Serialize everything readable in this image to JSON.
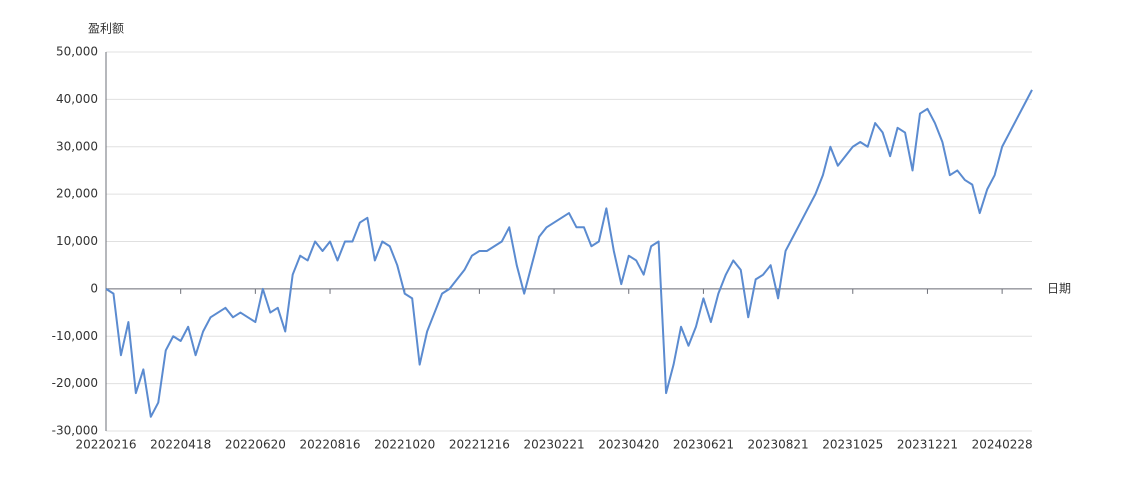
{
  "chart_data": {
    "type": "line",
    "y_axis_name": "盈利额",
    "x_axis_name": "日期",
    "categories": [
      "20220216",
      null,
      null,
      null,
      null,
      null,
      null,
      null,
      null,
      null,
      "20220418",
      null,
      null,
      null,
      null,
      null,
      null,
      null,
      null,
      null,
      "20220620",
      null,
      null,
      null,
      null,
      null,
      null,
      null,
      null,
      null,
      "20220816",
      null,
      null,
      null,
      null,
      null,
      null,
      null,
      null,
      null,
      "20221020",
      null,
      null,
      null,
      null,
      null,
      null,
      null,
      null,
      null,
      "20221216",
      null,
      null,
      null,
      null,
      null,
      null,
      null,
      null,
      null,
      "20230221",
      null,
      null,
      null,
      null,
      null,
      null,
      null,
      null,
      null,
      "20230420",
      null,
      null,
      null,
      null,
      null,
      null,
      null,
      null,
      null,
      "20230621",
      null,
      null,
      null,
      null,
      null,
      null,
      null,
      null,
      null,
      "20230821",
      null,
      null,
      null,
      null,
      null,
      null,
      null,
      null,
      null,
      "20231025",
      null,
      null,
      null,
      null,
      null,
      null,
      null,
      null,
      null,
      "20231221",
      null,
      null,
      null,
      null,
      null,
      null,
      null,
      null,
      null,
      "20240228",
      null,
      null,
      null,
      null
    ],
    "series": [
      {
        "color": "#5b8bd0",
        "values": [
          0,
          -1000,
          -14000,
          -7000,
          -22000,
          -17000,
          -27000,
          -24000,
          -13000,
          -10000,
          -11000,
          -8000,
          -14000,
          -9000,
          -6000,
          -5000,
          -4000,
          -6000,
          -5000,
          -6000,
          -7000,
          0,
          -5000,
          -4000,
          -9000,
          3000,
          7000,
          6000,
          10000,
          8000,
          10000,
          6000,
          10000,
          10000,
          14000,
          15000,
          6000,
          10000,
          9000,
          5000,
          -1000,
          -2000,
          -16000,
          -9000,
          -5000,
          -1000,
          0,
          2000,
          4000,
          7000,
          8000,
          8000,
          9000,
          10000,
          13000,
          5000,
          -1000,
          5000,
          11000,
          13000,
          14000,
          15000,
          16000,
          13000,
          13000,
          9000,
          10000,
          17000,
          8000,
          1000,
          7000,
          6000,
          3000,
          9000,
          10000,
          -22000,
          -16000,
          -8000,
          -12000,
          -8000,
          -2000,
          -7000,
          -1000,
          3000,
          6000,
          4000,
          -6000,
          2000,
          3000,
          5000,
          -2000,
          8000,
          11000,
          14000,
          17000,
          20000,
          24000,
          30000,
          26000,
          28000,
          30000,
          31000,
          30000,
          35000,
          33000,
          28000,
          34000,
          33000,
          25000,
          37000,
          38000,
          35000,
          31000,
          24000,
          25000,
          23000,
          22000,
          16000,
          21000,
          24000,
          30000,
          33000,
          36000,
          39000,
          42000
        ]
      }
    ],
    "ylim": [
      -30000,
      50000
    ],
    "yticks": [
      {
        "value": -30000,
        "label": "-30,000"
      },
      {
        "value": -20000,
        "label": "-20,000"
      },
      {
        "value": -10000,
        "label": "-10,000"
      },
      0,
      {
        "value": 10000,
        "label": "10,000"
      },
      {
        "value": 20000,
        "label": "20,000"
      },
      {
        "value": 30000,
        "label": "30,000"
      },
      {
        "value": 40000,
        "label": "40,000"
      },
      {
        "value": 50000,
        "label": "50,000"
      }
    ],
    "grid": true
  }
}
